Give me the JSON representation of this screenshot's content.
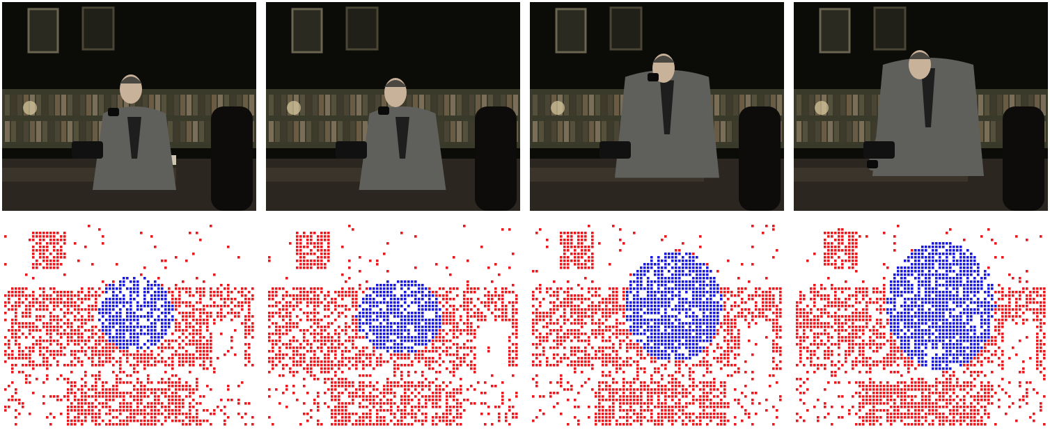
{
  "figure": {
    "columns": 4,
    "rows": [
      "video-frames",
      "motion-segmentation-masks"
    ]
  },
  "colors": {
    "background_points": "#e8191e",
    "foreground_points": "#1a1ad6",
    "scene_dark": "#0b0b08",
    "bookshelf_wood": "#3a3a2a",
    "jacket_grey": "#5f605c",
    "face_skin": "#c9b29a",
    "desk_brown": "#2c2620"
  },
  "panels": [
    {
      "frame": 1,
      "subject_pose": "seated-on-phone"
    },
    {
      "frame": 2,
      "subject_pose": "rising"
    },
    {
      "frame": 3,
      "subject_pose": "standing-leaning"
    },
    {
      "frame": 4,
      "subject_pose": "replacing-receiver"
    }
  ]
}
